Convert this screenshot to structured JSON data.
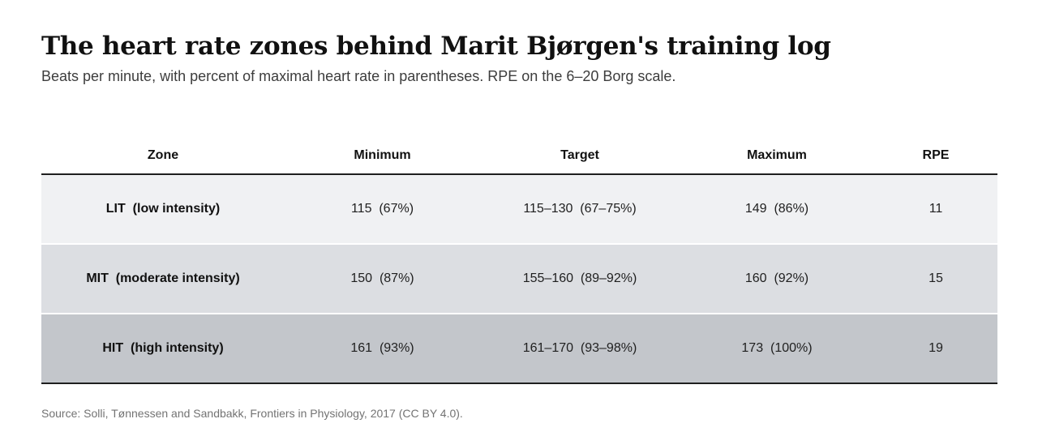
{
  "title": "The heart rate zones behind Marit Bjørgen's training log",
  "subtitle": "Beats per minute, with percent of maximal heart rate in parentheses. RPE on the 6–20 Borg scale.",
  "table": {
    "headers": [
      "Zone",
      "Minimum",
      "Target",
      "Maximum",
      "RPE"
    ],
    "rows": [
      {
        "zone": "LIT  (low intensity)",
        "minimum": "115  (67%)",
        "target": "115–130  (67–75%)",
        "maximum": "149  (86%)",
        "rpe": "11"
      },
      {
        "zone": "MIT  (moderate intensity)",
        "minimum": "150  (87%)",
        "target": "155–160  (89–92%)",
        "maximum": "160  (92%)",
        "rpe": "15"
      },
      {
        "zone": "HIT  (high intensity)",
        "minimum": "161  (93%)",
        "target": "161–170  (93–98%)",
        "maximum": "173  (100%)",
        "rpe": "19"
      }
    ],
    "row_colors": [
      "#f0f1f3",
      "#dcdee2",
      "#c3c6cb"
    ]
  },
  "source": "Source: Solli, Tønnessen and Sandbakk, Frontiers in Physiology, 2017 (CC BY 4.0)."
}
